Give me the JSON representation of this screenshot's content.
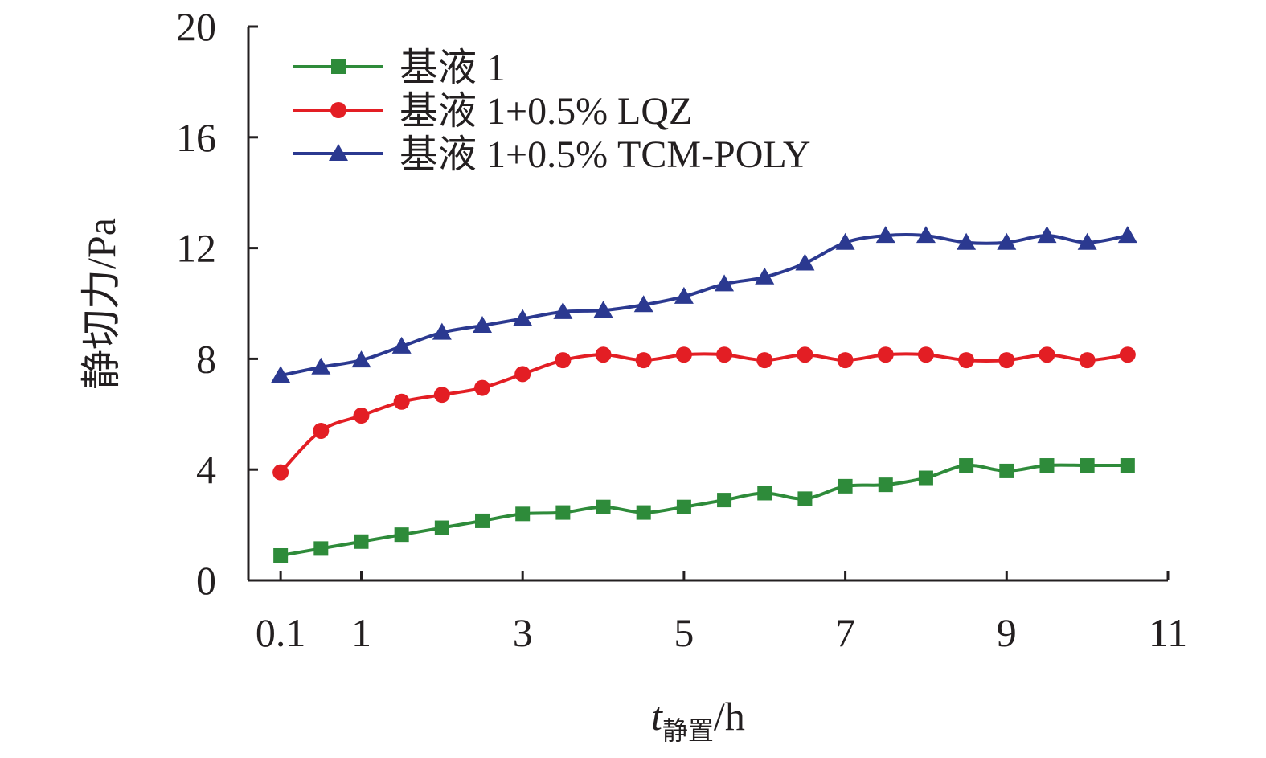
{
  "chart_data": {
    "type": "line",
    "xlabel": {
      "main": "t",
      "sub": "静置",
      "unit": "/h"
    },
    "ylabel": "静切力/Pa",
    "xlim": [
      -0.4,
      11
    ],
    "ylim": [
      0,
      20
    ],
    "xticks": [
      {
        "value": 0,
        "label": "0.1"
      },
      {
        "value": 1,
        "label": "1"
      },
      {
        "value": 3,
        "label": "3"
      },
      {
        "value": 5,
        "label": "5"
      },
      {
        "value": 7,
        "label": "7"
      },
      {
        "value": 9,
        "label": "9"
      },
      {
        "value": 11,
        "label": "11"
      }
    ],
    "yticks": [
      0,
      4,
      8,
      12,
      16,
      20
    ],
    "grid": false,
    "legend_position": "top-left",
    "x": [
      0,
      0.5,
      1,
      1.5,
      2,
      2.5,
      3,
      3.5,
      4,
      4.5,
      5,
      5.5,
      6,
      6.5,
      7,
      7.5,
      8,
      8.5,
      9,
      9.5,
      10,
      10.5
    ],
    "series": [
      {
        "name": "基液 1",
        "color": "#2e8b3a",
        "marker": "square",
        "values": [
          0.9,
          1.15,
          1.4,
          1.65,
          1.9,
          2.15,
          2.4,
          2.45,
          2.65,
          2.45,
          2.65,
          2.9,
          3.15,
          2.95,
          3.4,
          3.45,
          3.7,
          4.15,
          3.95,
          4.15,
          4.15,
          4.15
        ]
      },
      {
        "name": "基液 1+0.5% LQZ",
        "color": "#e31e24",
        "marker": "circle",
        "values": [
          3.9,
          5.4,
          5.95,
          6.45,
          6.7,
          6.95,
          7.45,
          7.95,
          8.15,
          7.95,
          8.15,
          8.15,
          7.95,
          8.15,
          7.95,
          8.15,
          8.15,
          7.95,
          7.95,
          8.15,
          7.95,
          8.15
        ]
      },
      {
        "name": "基液 1+0.5% TCM-POLY",
        "color": "#2b3990",
        "marker": "triangle",
        "values": [
          7.4,
          7.7,
          7.95,
          8.45,
          8.95,
          9.2,
          9.45,
          9.7,
          9.75,
          9.95,
          10.25,
          10.7,
          10.95,
          11.45,
          12.2,
          12.45,
          12.45,
          12.2,
          12.2,
          12.45,
          12.2,
          12.45
        ]
      }
    ]
  }
}
